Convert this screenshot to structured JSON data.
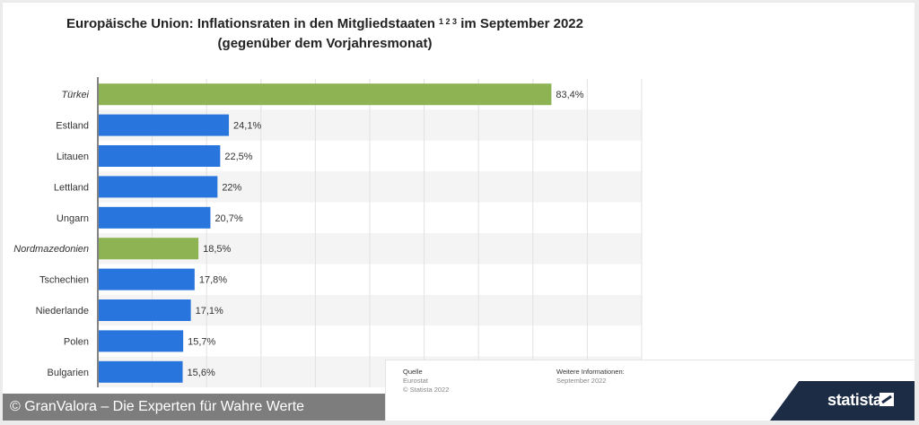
{
  "title_main": "Europäische Union: Inflationsraten in den Mitgliedstaaten",
  "title_sup": "1 2 3",
  "title_end": "im September 2022",
  "title_line2": "(gegenüber dem Vorjahresmonat)",
  "chart_data": {
    "type": "bar",
    "orientation": "horizontal",
    "categories": [
      "Türkei",
      "Estland",
      "Litauen",
      "Lettland",
      "Ungarn",
      "Nordmazedonien",
      "Tschechien",
      "Niederlande",
      "Polen",
      "Bulgarien"
    ],
    "values": [
      83.4,
      24.1,
      22.5,
      22,
      20.7,
      18.5,
      17.8,
      17.1,
      15.7,
      15.6
    ],
    "value_labels": [
      "83,4%",
      "24,1%",
      "22,5%",
      "22%",
      "20,7%",
      "18,5%",
      "17,8%",
      "17,1%",
      "15,7%",
      "15,6%"
    ],
    "non_eu": [
      true,
      false,
      false,
      false,
      false,
      true,
      false,
      false,
      false,
      false
    ],
    "colors": {
      "eu": "#2876dd",
      "non_eu": "#8db352"
    },
    "xlim": [
      0,
      100
    ],
    "grid": true
  },
  "source": {
    "heading": "Quelle",
    "lines": [
      "Eurostat",
      "© Statista 2022"
    ],
    "more_heading": "Weitere Informationen:",
    "more_lines": [
      "September 2022"
    ]
  },
  "footer_text": "© GranValora – Die Experten für Wahre Werte",
  "logo_text": "statista"
}
